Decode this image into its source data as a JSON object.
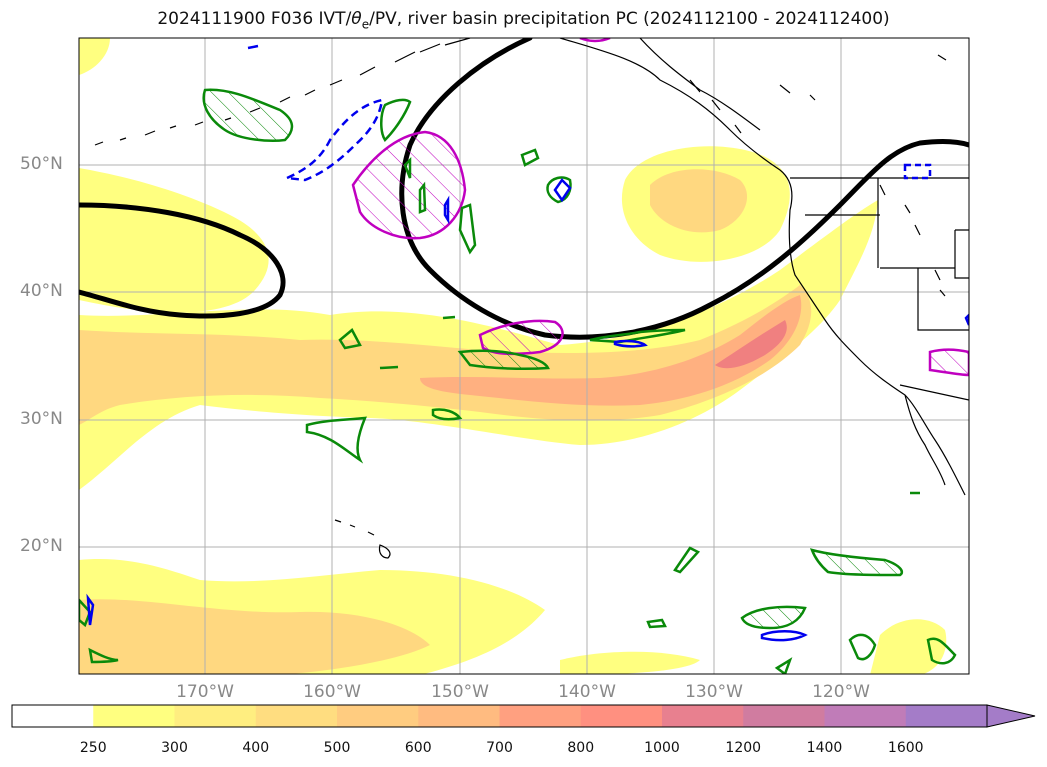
{
  "title": "2024111900 F036 IVT/θe/PV, river basin precipitation PC (2024112100 - 2024112400)",
  "title_parts": {
    "prefix": "2024111900 F036 IVT/",
    "theta": "θ",
    "sub": "e",
    "suffix": "/PV, river basin precipitation PC (2024112100 - 2024112400)"
  },
  "lat_labels": [
    "50°N",
    "40°N",
    "30°N",
    "20°N"
  ],
  "lon_labels": [
    "170°W",
    "160°W",
    "150°W",
    "140°W",
    "130°W",
    "120°W"
  ],
  "colorbar": {
    "labels": [
      "250",
      "300",
      "400",
      "500",
      "600",
      "700",
      "800",
      "1000",
      "1200",
      "1400",
      "1600"
    ],
    "colors": [
      "#ffffff",
      "#ffff80",
      "#ffee80",
      "#ffdd80",
      "#ffcc80",
      "#ffbb80",
      "#ffa080",
      "#ff9080",
      "#e8808f",
      "#d07ca0",
      "#c07cb8",
      "#a47cc8"
    ]
  },
  "colors": {
    "ivt_low": "#ffff80",
    "ivt_mid": "#ffd880",
    "ivt_high": "#ffb080",
    "ivt_peak": "#f08080",
    "theta_e_contour": "#000000",
    "pv_positive": "#0a8a0a",
    "pv_negative": "#0000ee",
    "precip_pc": "#c000c0",
    "coast": "#000000",
    "grid": "#b0b0b0"
  }
}
